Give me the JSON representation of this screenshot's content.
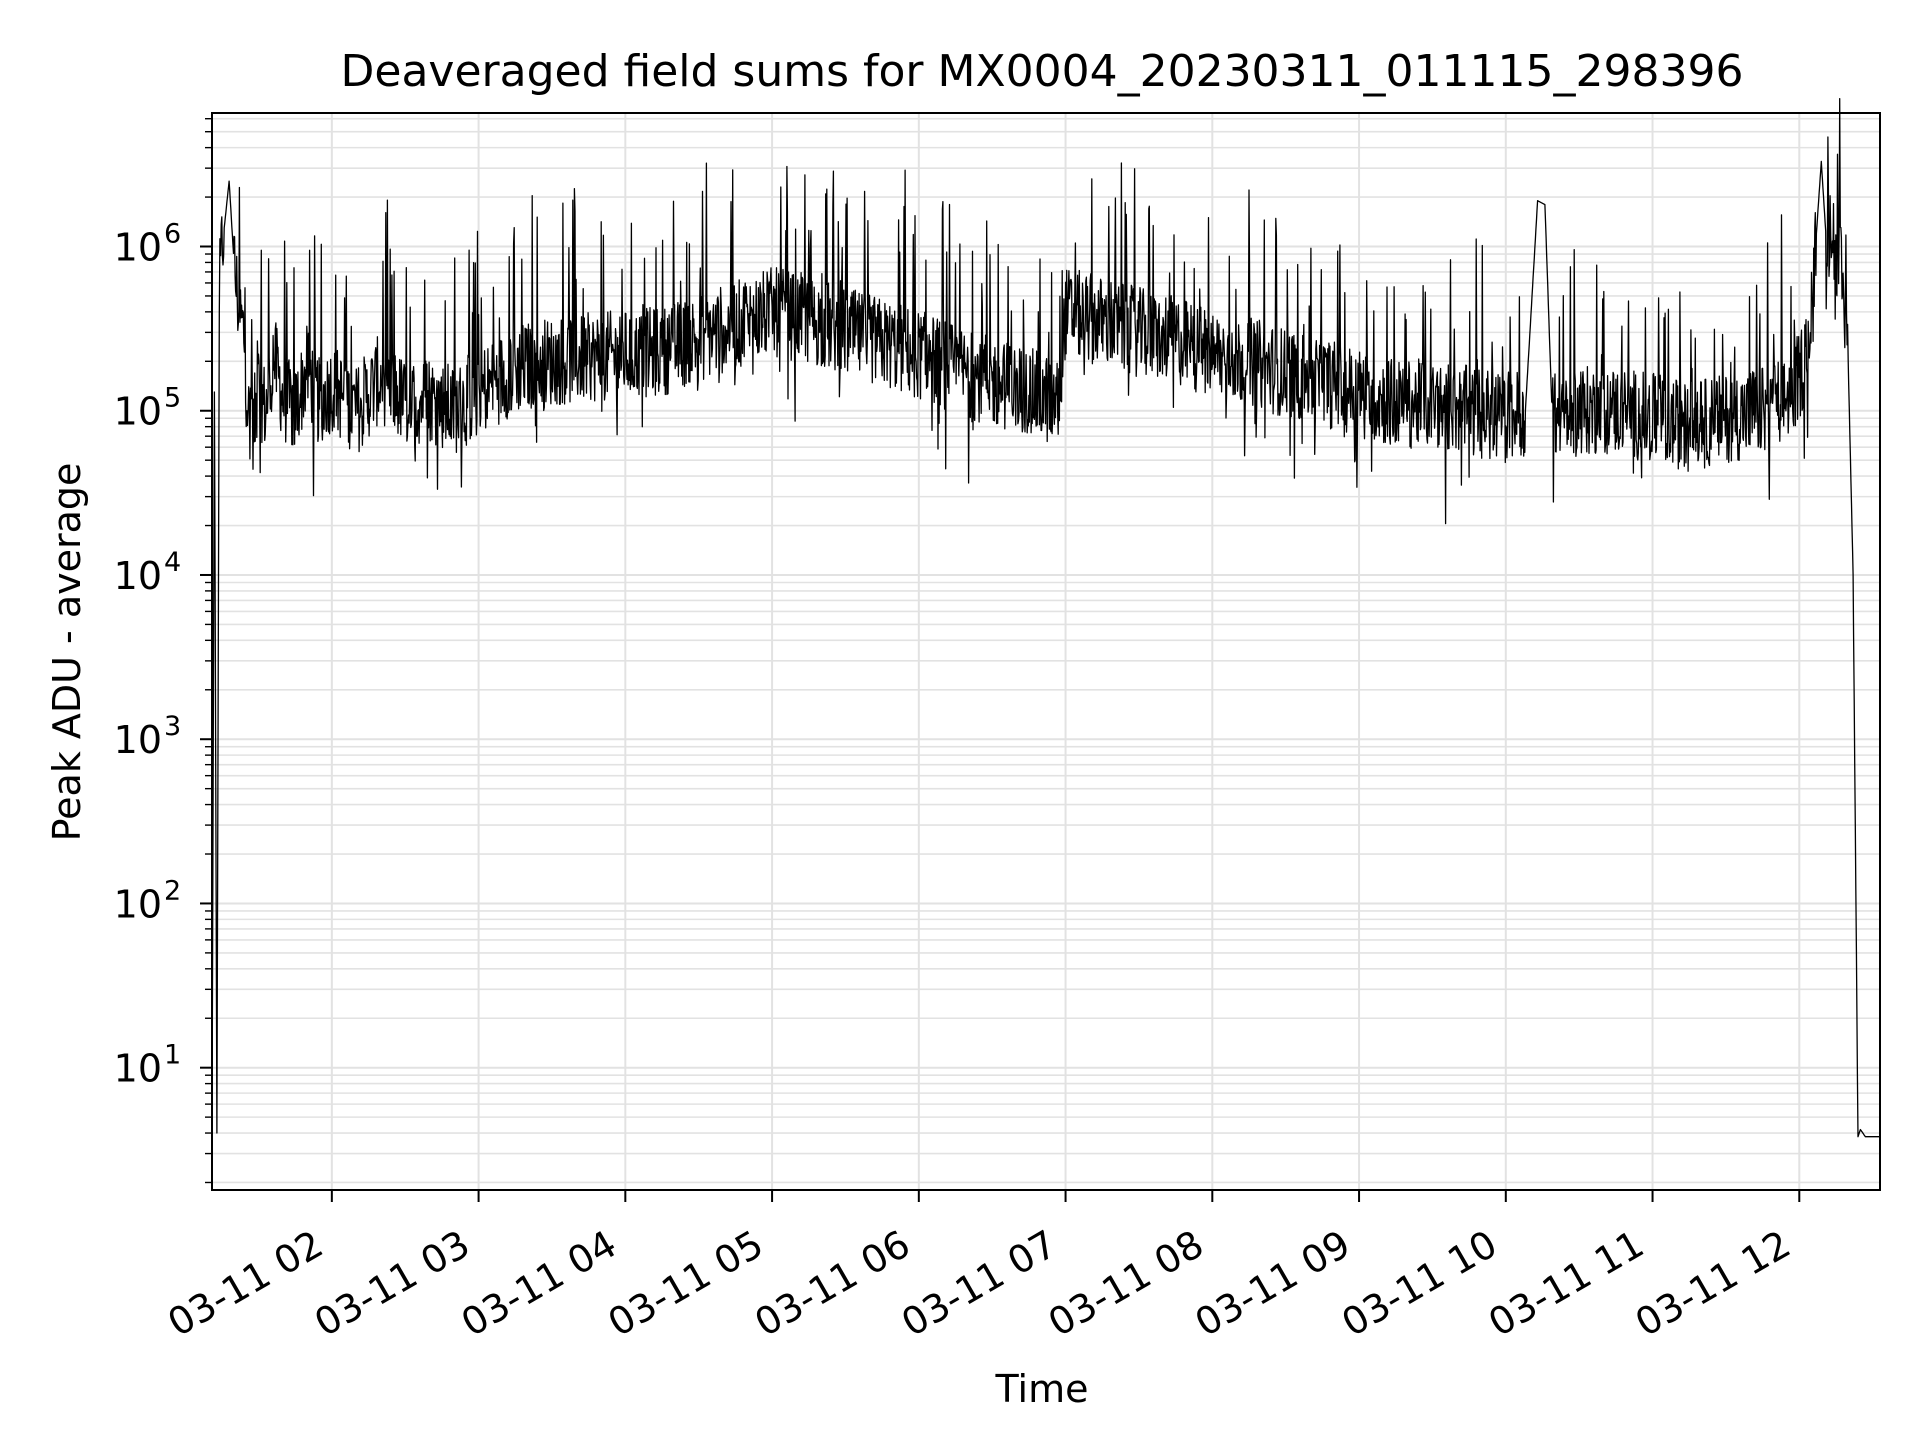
{
  "chart_data": {
    "type": "line",
    "title": "Deaveraged field sums for MX0004_20230311_011115_298396",
    "xlabel": "Time",
    "ylabel": "Peak ADU - average",
    "y_scale": "log",
    "grid": true,
    "grid_color": "#e2e2e2",
    "line_color": "#000000",
    "xlim": [
      "2023-03-11 01:11",
      "2023-03-11 12:33"
    ],
    "ylim": [
      1.8,
      6500000
    ],
    "x_ticks": [
      {
        "value": "2023-03-11 02:00",
        "label": "03-11 02"
      },
      {
        "value": "2023-03-11 03:00",
        "label": "03-11 03"
      },
      {
        "value": "2023-03-11 04:00",
        "label": "03-11 04"
      },
      {
        "value": "2023-03-11 05:00",
        "label": "03-11 05"
      },
      {
        "value": "2023-03-11 06:00",
        "label": "03-11 06"
      },
      {
        "value": "2023-03-11 07:00",
        "label": "03-11 07"
      },
      {
        "value": "2023-03-11 08:00",
        "label": "03-11 08"
      },
      {
        "value": "2023-03-11 09:00",
        "label": "03-11 09"
      },
      {
        "value": "2023-03-11 10:00",
        "label": "03-11 10"
      },
      {
        "value": "2023-03-11 11:00",
        "label": "03-11 11"
      },
      {
        "value": "2023-03-11 12:00",
        "label": "03-11 12"
      }
    ],
    "y_ticks": [
      {
        "value": 10,
        "base": "10",
        "exp": "1"
      },
      {
        "value": 100,
        "base": "10",
        "exp": "2"
      },
      {
        "value": 1000,
        "base": "10",
        "exp": "3"
      },
      {
        "value": 10000,
        "base": "10",
        "exp": "4"
      },
      {
        "value": 100000,
        "base": "10",
        "exp": "5"
      },
      {
        "value": 1000000,
        "base": "10",
        "exp": "6"
      }
    ],
    "series": [
      {
        "x": [
          "2023-03-11 01:11",
          "2023-03-11 01:12",
          "2023-03-11 01:13",
          "2023-03-11 01:14",
          "2023-03-11 01:15",
          "2023-03-11 01:16",
          "2023-03-11 01:18",
          "2023-03-11 01:20",
          "2023-03-11 01:22",
          "2023-03-11 01:24",
          "2023-03-11 01:25",
          "2023-03-11 01:26",
          "2023-03-11 01:27",
          "2023-03-11 01:28",
          "2023-03-11 01:30",
          "2023-03-11 01:33",
          "2023-03-11 01:36",
          "2023-03-11 01:40",
          "2023-03-11 01:45",
          "2023-03-11 01:50",
          "2023-03-11 01:55",
          "2023-03-11 02:00",
          "2023-03-11 02:10",
          "2023-03-11 02:20",
          "2023-03-11 02:30",
          "2023-03-11 02:40",
          "2023-03-11 02:50",
          "2023-03-11 03:00",
          "2023-03-11 03:15",
          "2023-03-11 03:30",
          "2023-03-11 03:45",
          "2023-03-11 04:00",
          "2023-03-11 04:15",
          "2023-03-11 04:30",
          "2023-03-11 04:45",
          "2023-03-11 05:00",
          "2023-03-11 05:15",
          "2023-03-11 05:30",
          "2023-03-11 05:45",
          "2023-03-11 06:00",
          "2023-03-11 06:15",
          "2023-03-11 06:30",
          "2023-03-11 06:45",
          "2023-03-11 06:57",
          "2023-03-11 07:00",
          "2023-03-11 07:15",
          "2023-03-11 07:30",
          "2023-03-11 07:45",
          "2023-03-11 08:00",
          "2023-03-11 08:15",
          "2023-03-11 08:30",
          "2023-03-11 08:45",
          "2023-03-11 09:00",
          "2023-03-11 09:15",
          "2023-03-11 09:30",
          "2023-03-11 09:45",
          "2023-03-11 10:00",
          "2023-03-11 10:08",
          "2023-03-11 10:13",
          "2023-03-11 10:16",
          "2023-03-11 10:19",
          "2023-03-11 10:30",
          "2023-03-11 10:45",
          "2023-03-11 11:00",
          "2023-03-11 11:15",
          "2023-03-11 11:30",
          "2023-03-11 11:45",
          "2023-03-11 11:55",
          "2023-03-11 12:00",
          "2023-03-11 12:05",
          "2023-03-11 12:07",
          "2023-03-11 12:09",
          "2023-03-11 12:11",
          "2023-03-11 12:14",
          "2023-03-11 12:17",
          "2023-03-11 12:20",
          "2023-03-11 12:22",
          "2023-03-11 12:24",
          "2023-03-11 12:25",
          "2023-03-11 12:27",
          "2023-03-11 12:33"
        ],
        "values": [
          3.8,
          130000,
          4,
          500000,
          1000000,
          1300000,
          2500000,
          800000,
          400000,
          300000,
          150000,
          90000,
          120000,
          80000,
          140000,
          100000,
          220000,
          120000,
          100000,
          180000,
          110000,
          140000,
          100000,
          160000,
          110000,
          120000,
          100000,
          130000,
          180000,
          200000,
          210000,
          220000,
          230000,
          280000,
          330000,
          400000,
          360000,
          300000,
          260000,
          220000,
          180000,
          150000,
          130000,
          110000,
          400000,
          350000,
          300000,
          270000,
          220000,
          200000,
          170000,
          150000,
          130000,
          110000,
          110000,
          100000,
          90000,
          100000,
          1900000,
          1800000,
          90000,
          100000,
          100000,
          90000,
          80000,
          90000,
          100000,
          120000,
          160000,
          300000,
          1200000,
          3300000,
          1100000,
          1200000,
          700000,
          200000,
          10000,
          3.8,
          4.2,
          3.8,
          3.8
        ]
      }
    ]
  }
}
